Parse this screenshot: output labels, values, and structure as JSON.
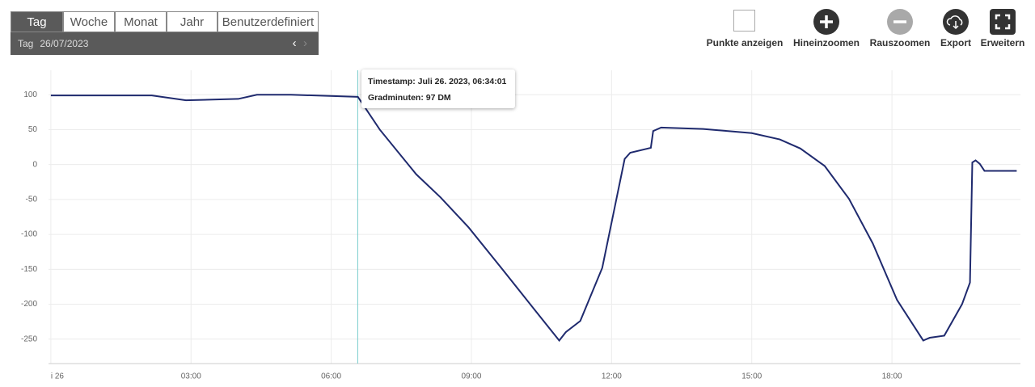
{
  "toolbar": {
    "tabs": [
      "Tag",
      "Woche",
      "Monat",
      "Jahr",
      "Benutzerdefiniert"
    ],
    "active_tab": 0,
    "period_label": "Tag",
    "date": "26/07/2023"
  },
  "actions": [
    "Punkte anzeigen",
    "Hineinzoomen",
    "Rauszoomen",
    "Export",
    "Erweitern"
  ],
  "tooltip": {
    "lines": [
      "Timestamp: Juli 26. 2023, 06:34:01",
      "Gradminuten: 97 DM"
    ],
    "x": 6.567
  },
  "chart_data": {
    "type": "line",
    "color": "#1f2a6e",
    "grid": true,
    "xlim": [
      -0.05,
      20.75
    ],
    "ylim": [
      -285,
      135
    ],
    "xticks": [
      {
        "value": 0,
        "label": "i 26"
      },
      {
        "value": 3,
        "label": "03:00"
      },
      {
        "value": 6,
        "label": "06:00"
      },
      {
        "value": 9,
        "label": "09:00"
      },
      {
        "value": 12,
        "label": "12:00"
      },
      {
        "value": 15,
        "label": "15:00"
      },
      {
        "value": 18,
        "label": "18:00"
      }
    ],
    "yticks": [
      100,
      50,
      0,
      -50,
      -100,
      -150,
      -200,
      -250
    ],
    "x": [
      0,
      2.16,
      2.89,
      4.01,
      4.41,
      5.14,
      6.57,
      7.04,
      7.82,
      8.34,
      8.94,
      9.64,
      10.33,
      10.88,
      11.02,
      11.33,
      11.8,
      12.28,
      12.4,
      12.84,
      12.89,
      13.06,
      13.96,
      15.0,
      15.6,
      16.04,
      16.56,
      17.08,
      17.59,
      18.11,
      18.67,
      18.81,
      19.12,
      19.5,
      19.67,
      19.72,
      19.79,
      19.88,
      19.98,
      20.67
    ],
    "values": [
      99,
      99,
      92,
      94,
      100,
      100,
      97,
      50,
      -14,
      -47,
      -90,
      -148,
      -206,
      -252,
      -240,
      -224,
      -148,
      8,
      17,
      24,
      48,
      53,
      51,
      45,
      36,
      23,
      -2,
      -49,
      -113,
      -194,
      -252,
      -248,
      -245,
      -200,
      -169,
      3,
      6,
      1,
      -9,
      -9
    ]
  }
}
